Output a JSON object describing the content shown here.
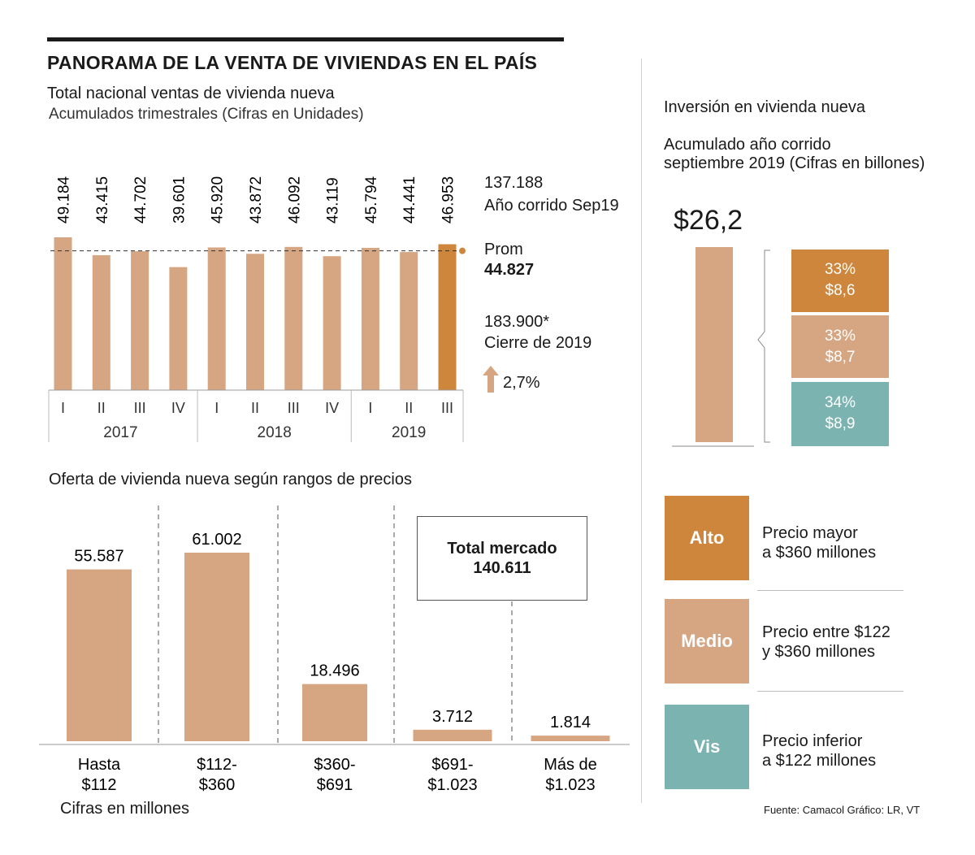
{
  "header": {
    "title": "PANORAMA DE LA VENTA DE VIVIENDAS EN EL PAÍS",
    "subtitle": "Total nacional ventas de vivienda nueva",
    "note": "Acumulados trimestrales (Cifras en Unidades)"
  },
  "colors": {
    "light": "#D6A581",
    "dark": "#CE853C",
    "teal": "#7AB3AF"
  },
  "chart_data": [
    {
      "type": "bar",
      "title": "Total nacional ventas de vivienda nueva",
      "subtitle": "Acumulados trimestrales (Cifras en Unidades)",
      "categories": [
        "I",
        "II",
        "III",
        "IV",
        "I",
        "II",
        "III",
        "IV",
        "I",
        "II",
        "III"
      ],
      "years": [
        {
          "label": "2017",
          "quarters": 4
        },
        {
          "label": "2018",
          "quarters": 4
        },
        {
          "label": "2019",
          "quarters": 3
        }
      ],
      "values": [
        49184,
        43415,
        44702,
        39601,
        45920,
        43872,
        46092,
        43119,
        45794,
        44441,
        46953
      ],
      "value_labels": [
        "49.184",
        "43.415",
        "44.702",
        "39.601",
        "45.920",
        "43.872",
        "46.092",
        "43.119",
        "45.794",
        "44.441",
        "46.953"
      ],
      "highlight_last": true,
      "average": 44827,
      "ylim": [
        0,
        50000
      ]
    },
    {
      "type": "bar",
      "title": "Oferta de vivienda nueva según rangos de precios",
      "categories": [
        "Hasta $112",
        "$112- $360",
        "$360- $691",
        "$691- $1.023",
        "Más de $1.023"
      ],
      "category_lines": [
        [
          "Hasta",
          "$112"
        ],
        [
          "$112-",
          "$360"
        ],
        [
          "$360-",
          "$691"
        ],
        [
          "$691-",
          "$1.023"
        ],
        [
          "Más de",
          "$1.023"
        ]
      ],
      "values": [
        55587,
        61002,
        18496,
        3712,
        1814
      ],
      "value_labels": [
        "55.587",
        "61.002",
        "18.496",
        "3.712",
        "1.814"
      ],
      "ylim": [
        0,
        65000
      ],
      "xlabel": "Cifras en millones"
    },
    {
      "type": "bar",
      "title": "Inversión en vivienda nueva",
      "subtitle": "Acumulado año corrido septiembre 2019 (Cifras en billones)",
      "total": 26.2,
      "total_label": "$26,2",
      "segments": [
        {
          "name": "Alto",
          "percent": "33%",
          "value": 8.6,
          "label": "$8,6"
        },
        {
          "name": "Medio",
          "percent": "33%",
          "value": 8.7,
          "label": "$8,7"
        },
        {
          "name": "Vis",
          "percent": "34%",
          "value": 8.9,
          "label": "$8,9"
        }
      ]
    }
  ],
  "annotations": {
    "ytd_value": "137.188",
    "ytd_label": "Año corrido Sep19",
    "avg_label": "Prom",
    "avg_value": "44.827",
    "close_value": "183.900*",
    "close_label": "Cierre de 2019",
    "growth": "2,7%"
  },
  "offer": {
    "title": "Oferta de vivienda nueva según rangos de precios",
    "total_label": "Total mercado",
    "total_value": "140.611",
    "units_note": "Cifras en millones"
  },
  "investment": {
    "title": "Inversión en vivienda nueva",
    "note_line1": "Acumulado año corrido",
    "note_line2": "septiembre 2019 (Cifras en billones)"
  },
  "legend": [
    {
      "name": "Alto",
      "desc1": "Precio mayor",
      "desc2": "a $360 millones"
    },
    {
      "name": "Medio",
      "desc1": "Precio entre $122",
      "desc2": "y $360 millones"
    },
    {
      "name": "Vis",
      "desc1": "Precio inferior",
      "desc2": "a $122 millones"
    }
  ],
  "source": "Fuente: Camacol  Gráfico: LR, VT"
}
